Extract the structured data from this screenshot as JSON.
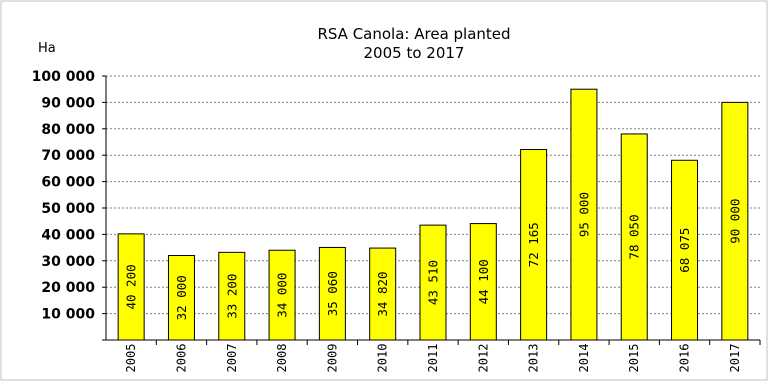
{
  "chart_data": {
    "type": "bar",
    "title": "RSA Canola: Area planted",
    "subtitle": "2005 to 2017",
    "ylabel": "Ha",
    "ylim": [
      0,
      100000
    ],
    "yticks": [
      10000,
      20000,
      30000,
      40000,
      50000,
      60000,
      70000,
      80000,
      90000,
      100000
    ],
    "ytick_labels": [
      "10 000",
      "20 000",
      "30 000",
      "40 000",
      "50 000",
      "60 000",
      "70 000",
      "80 000",
      "90 000",
      "100 000"
    ],
    "grid": true,
    "legend": "none",
    "categories": [
      "2005",
      "2006",
      "2007",
      "2008",
      "2009",
      "2010",
      "2011",
      "2012",
      "2013",
      "2014",
      "2015",
      "2016",
      "2017"
    ],
    "values": [
      40200,
      32000,
      33200,
      34000,
      35060,
      34820,
      43510,
      44100,
      72165,
      95000,
      78050,
      68075,
      90000
    ],
    "data_labels": [
      "40 200",
      "32 000",
      "33 200",
      "34 000",
      "35 060",
      "34 820",
      "43 510",
      "44 100",
      "72 165",
      "95 000",
      "78 050",
      "68 075",
      "90 000"
    ],
    "colors": {
      "bar": "#ffff00",
      "bar_edge": "#000000",
      "grid": "#808080"
    }
  }
}
